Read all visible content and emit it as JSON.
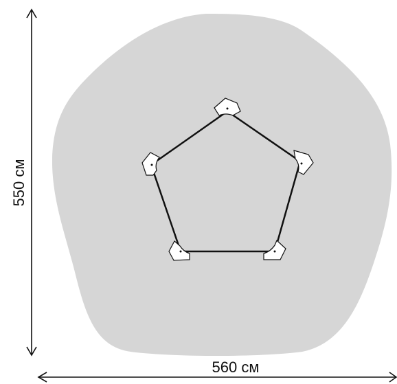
{
  "dimensions": {
    "height_label": "550 см",
    "width_label": "560 см"
  },
  "colors": {
    "safety_zone": "#d6d6d6",
    "frame": "#111111",
    "arrow": "#111111",
    "background": "#ffffff"
  }
}
